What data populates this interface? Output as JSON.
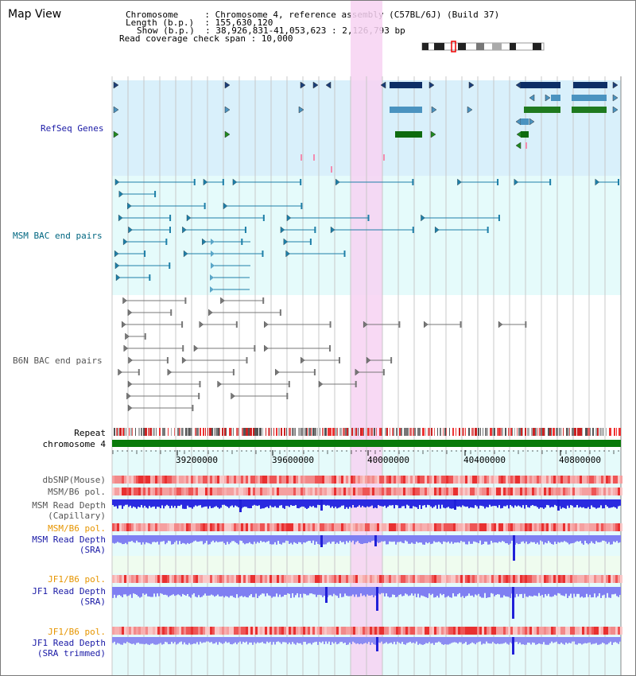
{
  "view_title": "Map View",
  "header": {
    "lines": [
      "Chromosome     : Chromosome 4, reference assembly (C57BL/6J) (Build 37)",
      "Length (b.p.)  : 155,630,120",
      "Show (b.p.)  : 38,926,831-41,053,623 : 2,126,793 bp",
      "Read coverage check span : 10,000"
    ]
  },
  "tracks": {
    "refseq": "RefSeq Genes",
    "msm_bac": "MSM BAC end pairs",
    "b6n_bac": "B6N BAC end pairs",
    "repeat": "Repeat",
    "chromosome": "chromosome 4",
    "dbsnp": "dbSNP(Mouse)",
    "msm_b6_pol_1": "MSM/B6 pol.",
    "msm_depth_cap_1": "MSM Read Depth",
    "msm_depth_cap_2": "(Capillary)",
    "msm_b6_pol_2": "MSM/B6 pol.",
    "msm_depth_sra_1": "MSM Read Depth",
    "msm_depth_sra_2": "(SRA)",
    "jf1_b6_pol_1": "JF1/B6 pol.",
    "jf1_depth_sra_1": "JF1 Read Depth",
    "jf1_depth_sra_2": "(SRA)",
    "jf1_b6_pol_2": "JF1/B6 pol.",
    "jf1_depth_trim_1": "JF1 Read Depth",
    "jf1_depth_trim_2": "(SRA trimmed)"
  },
  "axis": {
    "ticks": [
      "39200000",
      "39600000",
      "40000000",
      "40400000",
      "40800000"
    ]
  },
  "colors": {
    "refseq_label": "#1a1aa6",
    "msm_bac_label": "#006680",
    "b6n_bac_label": "#555555",
    "pol_label_orange": "#e69500",
    "depth_label_blue": "#1a1aa6",
    "highlight": "#f7d2f2"
  }
}
